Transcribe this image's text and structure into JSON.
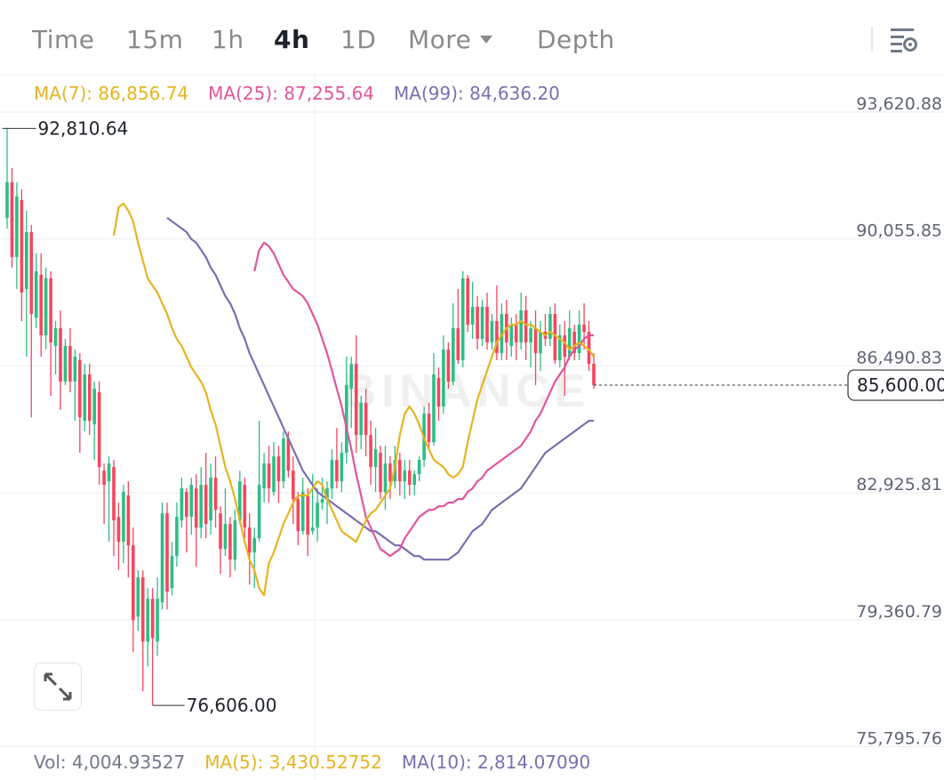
{
  "tabs": {
    "items": [
      "Time",
      "15m",
      "1h",
      "4h",
      "1D",
      "More",
      "Depth"
    ],
    "active": "4h"
  },
  "icons": {
    "more_caret": "caret-down-icon",
    "settings": "chart-settings-icon",
    "expand": "expand-arrows-icon"
  },
  "ma_legend": {
    "ma7": "MA(7): 86,856.74",
    "ma25": "MA(25): 87,255.64",
    "ma99": "MA(99): 84,636.20"
  },
  "vol_legend": {
    "vol": "Vol: 4,004.93527",
    "ma5": "MA(5): 3,430.52752",
    "ma10": "MA(10): 2,814.07090"
  },
  "colors": {
    "up": "#2ebd85",
    "down": "#f6465d",
    "ma7": "#e6b422",
    "ma25": "#e0569b",
    "ma99": "#7a6fb0",
    "grid": "#eeeeee",
    "axis_text": "#5e6673",
    "watermark": "#f0f0f0"
  },
  "chart_data": {
    "type": "candlestick",
    "interval": "4h",
    "y_axis": {
      "ticks": [
        93620.88,
        90055.85,
        86490.83,
        82925.81,
        79360.79,
        75795.76
      ],
      "tick_labels": [
        "93,620.88",
        "90,055.85",
        "86,490.83",
        "82,925.81",
        "79,360.79",
        "75,795.76"
      ],
      "range": [
        75795.76,
        93620.88
      ]
    },
    "annotations": {
      "high": 92810.64,
      "high_label": "92,810.64",
      "low": 76606.0,
      "low_label": "76,606.00",
      "last_price": 85600.0,
      "last_price_label": "85,600.00"
    },
    "watermark": "BINANCE",
    "candles": [
      [
        90300,
        91300,
        92810,
        90000
      ],
      [
        91300,
        89200,
        91700,
        88900
      ],
      [
        89200,
        90900,
        91300,
        88300
      ],
      [
        90800,
        88200,
        91100,
        87400
      ],
      [
        88300,
        89900,
        90500,
        86400
      ],
      [
        89900,
        87600,
        90100,
        84700
      ],
      [
        87500,
        88800,
        89300,
        87200
      ],
      [
        88700,
        87000,
        89300,
        86400
      ],
      [
        87000,
        88600,
        88900,
        86600
      ],
      [
        88600,
        86800,
        88800,
        85300
      ],
      [
        86700,
        87200,
        87400,
        85900
      ],
      [
        87200,
        85700,
        87700,
        84900
      ],
      [
        85700,
        86700,
        86900,
        85600
      ],
      [
        86700,
        85700,
        87200,
        85400
      ],
      [
        85700,
        86400,
        86600,
        84600
      ],
      [
        86300,
        84700,
        86500,
        83700
      ],
      [
        84600,
        85900,
        86200,
        84300
      ],
      [
        85900,
        84600,
        86200,
        84200
      ],
      [
        84500,
        85500,
        85700,
        83500
      ],
      [
        85400,
        83300,
        85700,
        82800
      ],
      [
        83200,
        82800,
        83400,
        81700
      ],
      [
        82900,
        83400,
        83600,
        81200
      ],
      [
        83300,
        81800,
        83500,
        80800
      ],
      [
        81900,
        81200,
        82300,
        80400
      ],
      [
        81200,
        82600,
        82800,
        80600
      ],
      [
        82500,
        81100,
        82900,
        80200
      ],
      [
        81100,
        79000,
        81600,
        78100
      ],
      [
        79100,
        80200,
        80400,
        78700
      ],
      [
        80200,
        78400,
        80400,
        77000
      ],
      [
        78400,
        79600,
        79900,
        77700
      ],
      [
        79600,
        78500,
        79900,
        76606
      ],
      [
        78400,
        79600,
        80200,
        78000
      ],
      [
        79500,
        82000,
        82300,
        79300
      ],
      [
        82000,
        79800,
        82300,
        79300
      ],
      [
        79900,
        80800,
        81200,
        79700
      ],
      [
        80800,
        81900,
        82300,
        80500
      ],
      [
        81800,
        82700,
        83000,
        81600
      ],
      [
        82600,
        81900,
        82700,
        80900
      ],
      [
        81900,
        82800,
        83000,
        81400
      ],
      [
        82700,
        81600,
        83100,
        80500
      ],
      [
        81600,
        82800,
        83300,
        81300
      ],
      [
        82800,
        81700,
        83700,
        81300
      ],
      [
        81800,
        83000,
        83400,
        81400
      ],
      [
        83000,
        82100,
        83600,
        81600
      ],
      [
        82000,
        81000,
        82200,
        80300
      ],
      [
        81000,
        81700,
        82700,
        80800
      ],
      [
        81700,
        80700,
        81900,
        80200
      ],
      [
        80700,
        81800,
        82100,
        80400
      ],
      [
        81800,
        82900,
        83200,
        81700
      ],
      [
        82800,
        81600,
        83000,
        81300
      ],
      [
        81600,
        80900,
        82000,
        80000
      ],
      [
        80900,
        81300,
        81600,
        79900
      ],
      [
        81300,
        82800,
        84600,
        81200
      ],
      [
        82700,
        83400,
        83700,
        82300
      ],
      [
        83400,
        82700,
        83900,
        82300
      ],
      [
        82600,
        83600,
        84000,
        82500
      ],
      [
        83600,
        82900,
        83900,
        82300
      ],
      [
        82900,
        84100,
        84300,
        82700
      ],
      [
        84100,
        83200,
        84300,
        83000
      ],
      [
        83200,
        82400,
        83600,
        81700
      ],
      [
        82400,
        81500,
        82600,
        81100
      ],
      [
        81500,
        82600,
        83000,
        81400
      ],
      [
        82500,
        81400,
        82700,
        80800
      ],
      [
        81500,
        81600,
        83100,
        81400
      ],
      [
        81600,
        82300,
        82700,
        81200
      ],
      [
        82300,
        82400,
        83000,
        82100
      ],
      [
        82400,
        82700,
        82900,
        81700
      ],
      [
        82700,
        83500,
        83800,
        82400
      ],
      [
        83500,
        82900,
        84400,
        82700
      ],
      [
        82900,
        83700,
        84000,
        82600
      ],
      [
        83700,
        85600,
        86400,
        83400
      ],
      [
        85500,
        86200,
        86400,
        84400
      ],
      [
        86200,
        84200,
        87000,
        83700
      ],
      [
        84200,
        85100,
        85300,
        83800
      ],
      [
        85100,
        84200,
        85500,
        83600
      ],
      [
        84200,
        83300,
        84600,
        82800
      ],
      [
        83300,
        83800,
        84400,
        82600
      ],
      [
        83700,
        82600,
        83900,
        82400
      ],
      [
        82600,
        83400,
        83900,
        82100
      ],
      [
        83400,
        82900,
        83600,
        82400
      ],
      [
        82900,
        83500,
        83900,
        82700
      ],
      [
        83500,
        82900,
        83700,
        82500
      ],
      [
        82900,
        83200,
        83500,
        82400
      ],
      [
        83200,
        82800,
        83500,
        82500
      ],
      [
        82800,
        83100,
        83200,
        82500
      ],
      [
        83100,
        83500,
        83600,
        82900
      ],
      [
        83500,
        84800,
        85000,
        83300
      ],
      [
        84800,
        84000,
        85100,
        83800
      ],
      [
        84000,
        85900,
        86500,
        83900
      ],
      [
        85800,
        85000,
        86100,
        84600
      ],
      [
        85000,
        86600,
        87000,
        84800
      ],
      [
        86600,
        85700,
        86800,
        85500
      ],
      [
        85700,
        87200,
        87900,
        85600
      ],
      [
        87200,
        86300,
        88300,
        86200
      ],
      [
        86300,
        88600,
        88800,
        86100
      ],
      [
        88600,
        87300,
        88700,
        87100
      ],
      [
        87300,
        87800,
        88500,
        86900
      ],
      [
        87800,
        86900,
        88100,
        86600
      ],
      [
        86900,
        87800,
        88000,
        86700
      ],
      [
        87800,
        86800,
        88200,
        86600
      ],
      [
        86800,
        87400,
        87600,
        86600
      ],
      [
        87400,
        86500,
        88400,
        86300
      ],
      [
        86500,
        87600,
        87900,
        86300
      ],
      [
        87600,
        86800,
        88000,
        86300
      ],
      [
        86700,
        87300,
        87500,
        86400
      ],
      [
        87300,
        86800,
        87600,
        86300
      ],
      [
        86800,
        87700,
        88200,
        86600
      ],
      [
        87700,
        86800,
        88100,
        86300
      ],
      [
        86800,
        87200,
        87400,
        86100
      ],
      [
        87200,
        86500,
        87700,
        85600
      ],
      [
        86500,
        87100,
        87400,
        86000
      ],
      [
        87100,
        86900,
        87600,
        86700
      ],
      [
        86900,
        87600,
        87800,
        86700
      ],
      [
        87600,
        86300,
        87900,
        86200
      ],
      [
        86300,
        87000,
        87300,
        86100
      ],
      [
        87000,
        86400,
        87400,
        85300
      ],
      [
        86400,
        87200,
        87700,
        86300
      ],
      [
        87100,
        86500,
        87300,
        86300
      ],
      [
        86500,
        87300,
        87700,
        86300
      ],
      [
        87300,
        87100,
        87900,
        86600
      ],
      [
        87100,
        86200,
        87400,
        86000
      ],
      [
        86200,
        85600,
        86500,
        85500
      ]
    ],
    "ma7": [
      89800,
      90600,
      90700,
      90500,
      90200,
      89600,
      89100,
      88600,
      88400,
      88200,
      87900,
      87600,
      87200,
      86900,
      86700,
      86400,
      86100,
      85900,
      85700,
      85400,
      84900,
      84500,
      83900,
      83300,
      82900,
      82400,
      81800,
      81200,
      80700,
      80400,
      79900,
      79700,
      80600,
      80900,
      81300,
      81700,
      82000,
      82300,
      82500,
      82500,
      82500,
      82700,
      82900,
      82800,
      82400,
      82100,
      81800,
      81500,
      81400,
      81300,
      81200,
      81500,
      81800,
      82000,
      82100,
      82300,
      82500,
      82700,
      83300,
      84200,
      84800,
      85000,
      84800,
      84500,
      84100,
      83800,
      83500,
      83400,
      83300,
      83100,
      83000,
      83100,
      83300,
      84000,
      84600,
      85200,
      85600,
      86000,
      86400,
      86800,
      87000,
      87200,
      87300,
      87300,
      87400,
      87300,
      87300,
      87200,
      87100,
      87000,
      87100,
      87000,
      86900,
      86800,
      86600,
      86700,
      86800,
      86700,
      86600,
      86400
    ],
    "ma25": [
      88800,
      89400,
      89600,
      89500,
      89300,
      89000,
      88700,
      88500,
      88300,
      88200,
      88100,
      87900,
      87600,
      87300,
      86900,
      86500,
      86000,
      85500,
      85000,
      84400,
      83800,
      83100,
      82500,
      81900,
      81600,
      81300,
      81000,
      80900,
      80800,
      80900,
      81000,
      81300,
      81500,
      81700,
      81900,
      82000,
      82100,
      82100,
      82200,
      82200,
      82300,
      82300,
      82400,
      82400,
      82600,
      82700,
      82900,
      83000,
      83200,
      83300,
      83400,
      83500,
      83600,
      83700,
      83800,
      83900,
      84100,
      84300,
      84600,
      84800,
      85100,
      85400,
      85700,
      85900,
      86100,
      86400,
      86600,
      86700,
      86900,
      87000,
      87000
    ],
    "ma99": [
      90300,
      90200,
      90100,
      90000,
      89900,
      89700,
      89600,
      89400,
      89200,
      88900,
      88700,
      88400,
      88100,
      87900,
      87600,
      87200,
      86900,
      86500,
      86200,
      85900,
      85600,
      85300,
      85000,
      84700,
      84400,
      84100,
      83800,
      83500,
      83200,
      83000,
      82800,
      82600,
      82500,
      82400,
      82300,
      82200,
      82100,
      82000,
      81900,
      81800,
      81700,
      81600,
      81500,
      81500,
      81400,
      81300,
      81200,
      81100,
      81100,
      81000,
      80900,
      80800,
      80800,
      80700,
      80700,
      80700,
      80700,
      80700,
      80700,
      80800,
      80900,
      81100,
      81300,
      81500,
      81600,
      81700,
      81900,
      82100,
      82200,
      82300,
      82400,
      82500,
      82600,
      82700,
      82900,
      83100,
      83300,
      83500,
      83700,
      83800,
      83900,
      84000,
      84100,
      84200,
      84300,
      84400,
      84500,
      84600,
      84600
    ]
  }
}
